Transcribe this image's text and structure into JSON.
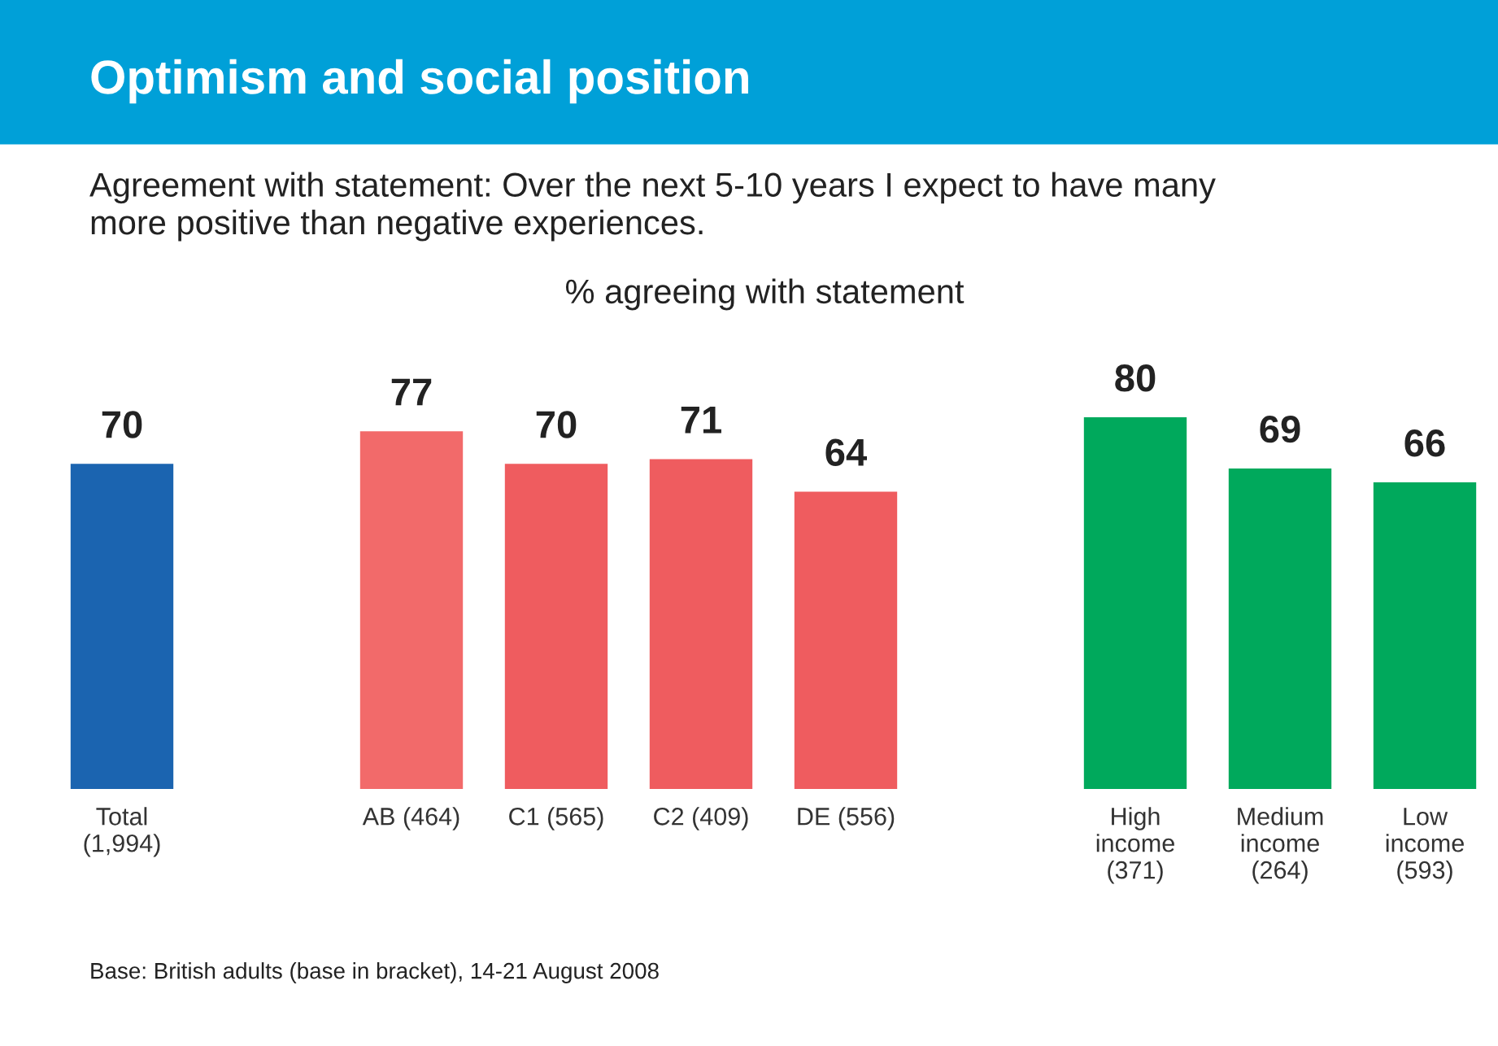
{
  "chart_data": {
    "type": "bar",
    "title": "Optimism and social position",
    "subtitle": "Agreement with statement: Over the next 5-10 years I expect to have many\nmore positive than negative experiences.",
    "annotations": [
      "% agreeing with statement",
      "Base: British adults (base in bracket), 14-21 August 2008"
    ],
    "categories": [
      "Total\n(1,994)",
      null,
      "AB (464)",
      "C1 (565)",
      "C2 (409)",
      "DE (556)",
      null,
      "High\nincome\n(371)",
      "Medium\nincome\n(264)",
      "Low\nincome\n(593)"
    ],
    "values": [
      70,
      null,
      77,
      70,
      71,
      64,
      null,
      80,
      69,
      66
    ],
    "colors": [
      "#1b64b0",
      null,
      "#f26a6a",
      "#ef5c5f",
      "#ef5c5f",
      "#ef5c5f",
      null,
      "#00a95c",
      "#00a95c",
      "#00a95c"
    ],
    "data_labels": true,
    "grid": false,
    "legend": false
  }
}
